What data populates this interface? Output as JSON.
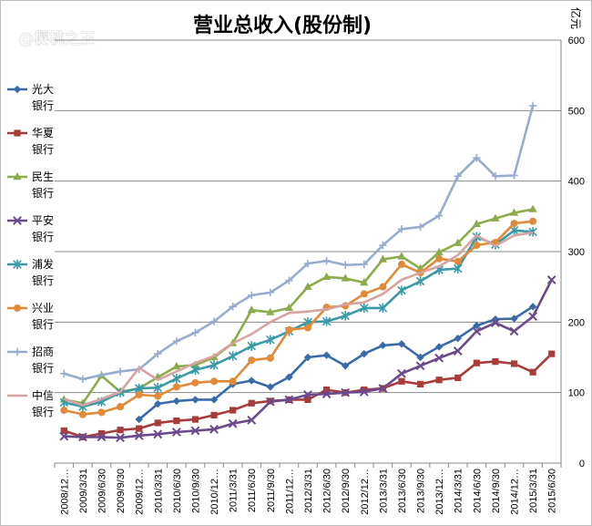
{
  "watermark": "@樱桃之王",
  "chart_data": {
    "type": "line",
    "title": "营业总收入(股份制)",
    "unit": "亿元",
    "ylim": [
      0,
      600
    ],
    "yticks": [
      0,
      100,
      200,
      300,
      400,
      500,
      600
    ],
    "grid": true,
    "legend_position": "left",
    "x": [
      "2008/12…",
      "2009/3/31",
      "2009/6/30",
      "2009/9/30",
      "2009/12…",
      "2010/3/31",
      "2010/6/30",
      "2010/9/30",
      "2010/12…",
      "2011/3/31",
      "2011/6/30",
      "2011/9/30",
      "2011/12…",
      "2012/3/31",
      "2012/6/30",
      "2012/9/30",
      "2012/12…",
      "2013/3/31",
      "2013/6/30",
      "2013/9/30",
      "2013/12…",
      "2014/3/31",
      "2014/6/30",
      "2014/9/30",
      "2014/12…",
      "2015/3/31",
      "2015/6/30"
    ],
    "series": [
      {
        "name": "光大银行",
        "color": "#3a6aa8",
        "marker": "diamond",
        "values": [
          null,
          null,
          null,
          null,
          62,
          84,
          88,
          90,
          90,
          112,
          117,
          108,
          122,
          150,
          153,
          138,
          155,
          167,
          169,
          150,
          165,
          177,
          195,
          204,
          205,
          222,
          null
        ]
      },
      {
        "name": "华夏银行",
        "color": "#a83c3a",
        "marker": "square",
        "values": [
          46,
          37,
          42,
          47,
          49,
          57,
          60,
          62,
          68,
          75,
          85,
          88,
          90,
          90,
          104,
          100,
          104,
          106,
          116,
          112,
          118,
          121,
          142,
          144,
          141,
          129,
          155
        ]
      },
      {
        "name": "民生银行",
        "color": "#8cab4a",
        "marker": "triangle",
        "values": [
          90,
          85,
          124,
          101,
          106,
          122,
          137,
          139,
          150,
          170,
          217,
          214,
          220,
          250,
          264,
          262,
          256,
          289,
          293,
          276,
          299,
          312,
          339,
          347,
          355,
          360,
          null
        ]
      },
      {
        "name": "平安银行",
        "color": "#6a4a8c",
        "marker": "x",
        "values": [
          38,
          37,
          37,
          36,
          39,
          41,
          44,
          46,
          48,
          56,
          61,
          87,
          90,
          97,
          98,
          100,
          101,
          106,
          127,
          138,
          149,
          159,
          187,
          199,
          187,
          208,
          260
        ]
      },
      {
        "name": "浦发银行",
        "color": "#3a9aa8",
        "marker": "star",
        "values": [
          86,
          80,
          87,
          100,
          106,
          107,
          120,
          132,
          139,
          152,
          166,
          175,
          187,
          200,
          201,
          209,
          220,
          220,
          245,
          258,
          274,
          276,
          321,
          310,
          330,
          328,
          null
        ]
      },
      {
        "name": "兴业银行",
        "color": "#e08a3a",
        "marker": "circle",
        "values": [
          75,
          69,
          72,
          80,
          97,
          95,
          108,
          114,
          116,
          116,
          146,
          149,
          189,
          192,
          221,
          223,
          240,
          250,
          282,
          270,
          290,
          286,
          309,
          313,
          340,
          343,
          null
        ]
      },
      {
        "name": "招商银行",
        "color": "#98acd0",
        "marker": "plus",
        "values": [
          127,
          119,
          125,
          130,
          133,
          155,
          173,
          185,
          201,
          222,
          238,
          242,
          259,
          283,
          287,
          281,
          282,
          309,
          332,
          335,
          351,
          407,
          433,
          407,
          408,
          507,
          null
        ]
      },
      {
        "name": "中信银行",
        "color": "#d6a3a1",
        "marker": "none",
        "values": [
          91,
          82,
          91,
          101,
          135,
          118,
          130,
          142,
          152,
          170,
          183,
          200,
          213,
          215,
          218,
          225,
          228,
          240,
          260,
          270,
          279,
          295,
          323,
          308,
          323,
          327,
          null
        ]
      }
    ]
  }
}
